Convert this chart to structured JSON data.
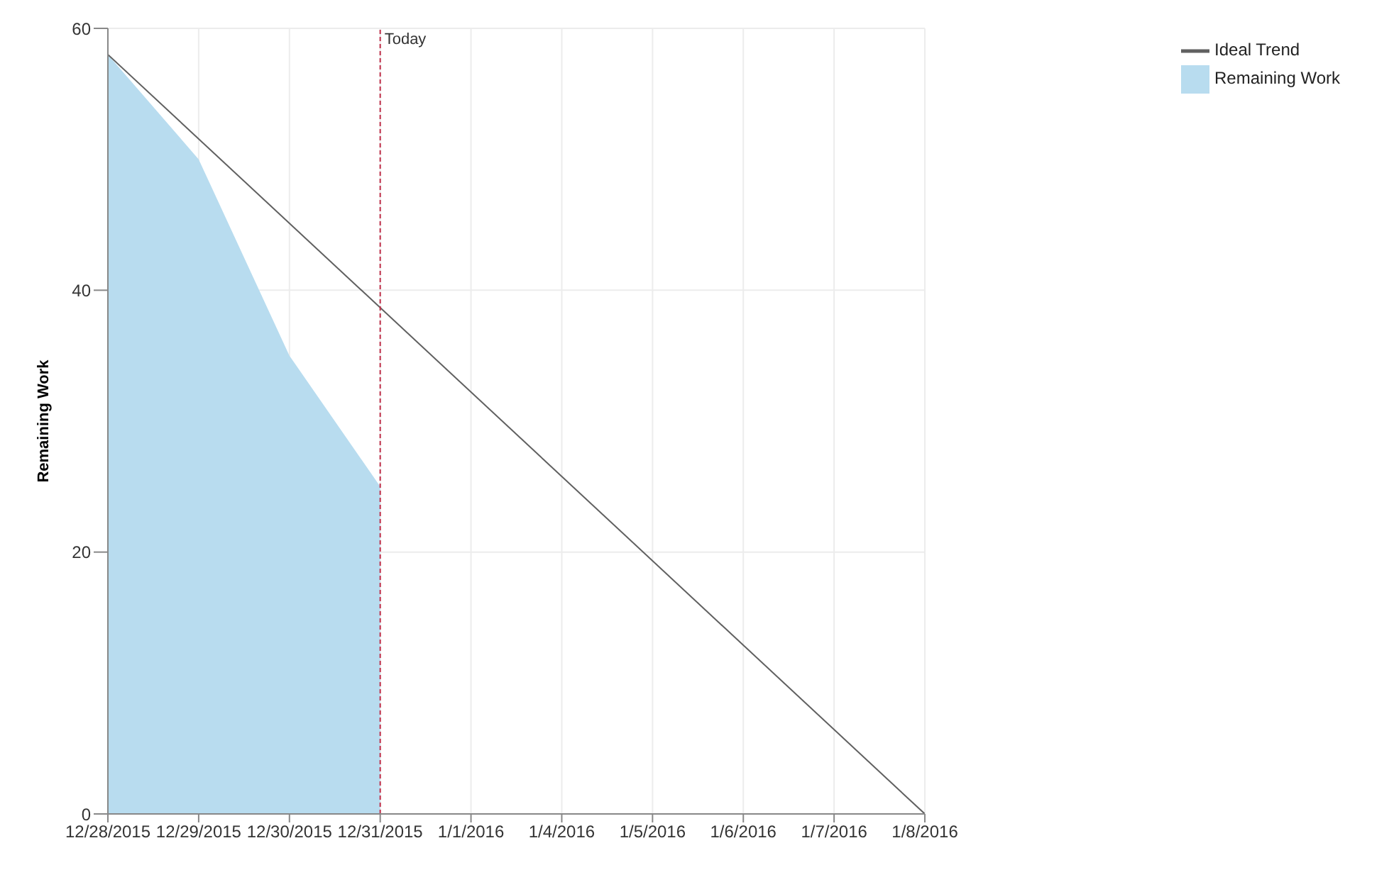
{
  "chart_data": {
    "type": "area",
    "ylabel": "Remaining Work",
    "categories": [
      "12/28/2015",
      "12/29/2015",
      "12/30/2015",
      "12/31/2015",
      "1/1/2016",
      "1/4/2016",
      "1/5/2016",
      "1/6/2016",
      "1/7/2016",
      "1/8/2016"
    ],
    "series": [
      {
        "name": "Ideal Trend",
        "type": "line",
        "color": "#606060",
        "values": [
          58,
          null,
          null,
          null,
          null,
          null,
          null,
          null,
          null,
          0
        ]
      },
      {
        "name": "Remaining Work",
        "color": "#b8dcef",
        "values": [
          58,
          50,
          35,
          25,
          null,
          null,
          null,
          null,
          null,
          null
        ]
      }
    ],
    "ylim": [
      0,
      60
    ],
    "yticks": [
      0,
      20,
      40,
      60
    ],
    "grid": true,
    "legend": "top right",
    "marker": "none",
    "ref_lines": [
      {
        "axis": "x",
        "value": "12/31/2015",
        "label": "Today",
        "color": "#c0304a",
        "line_style": "dashed"
      }
    ]
  }
}
